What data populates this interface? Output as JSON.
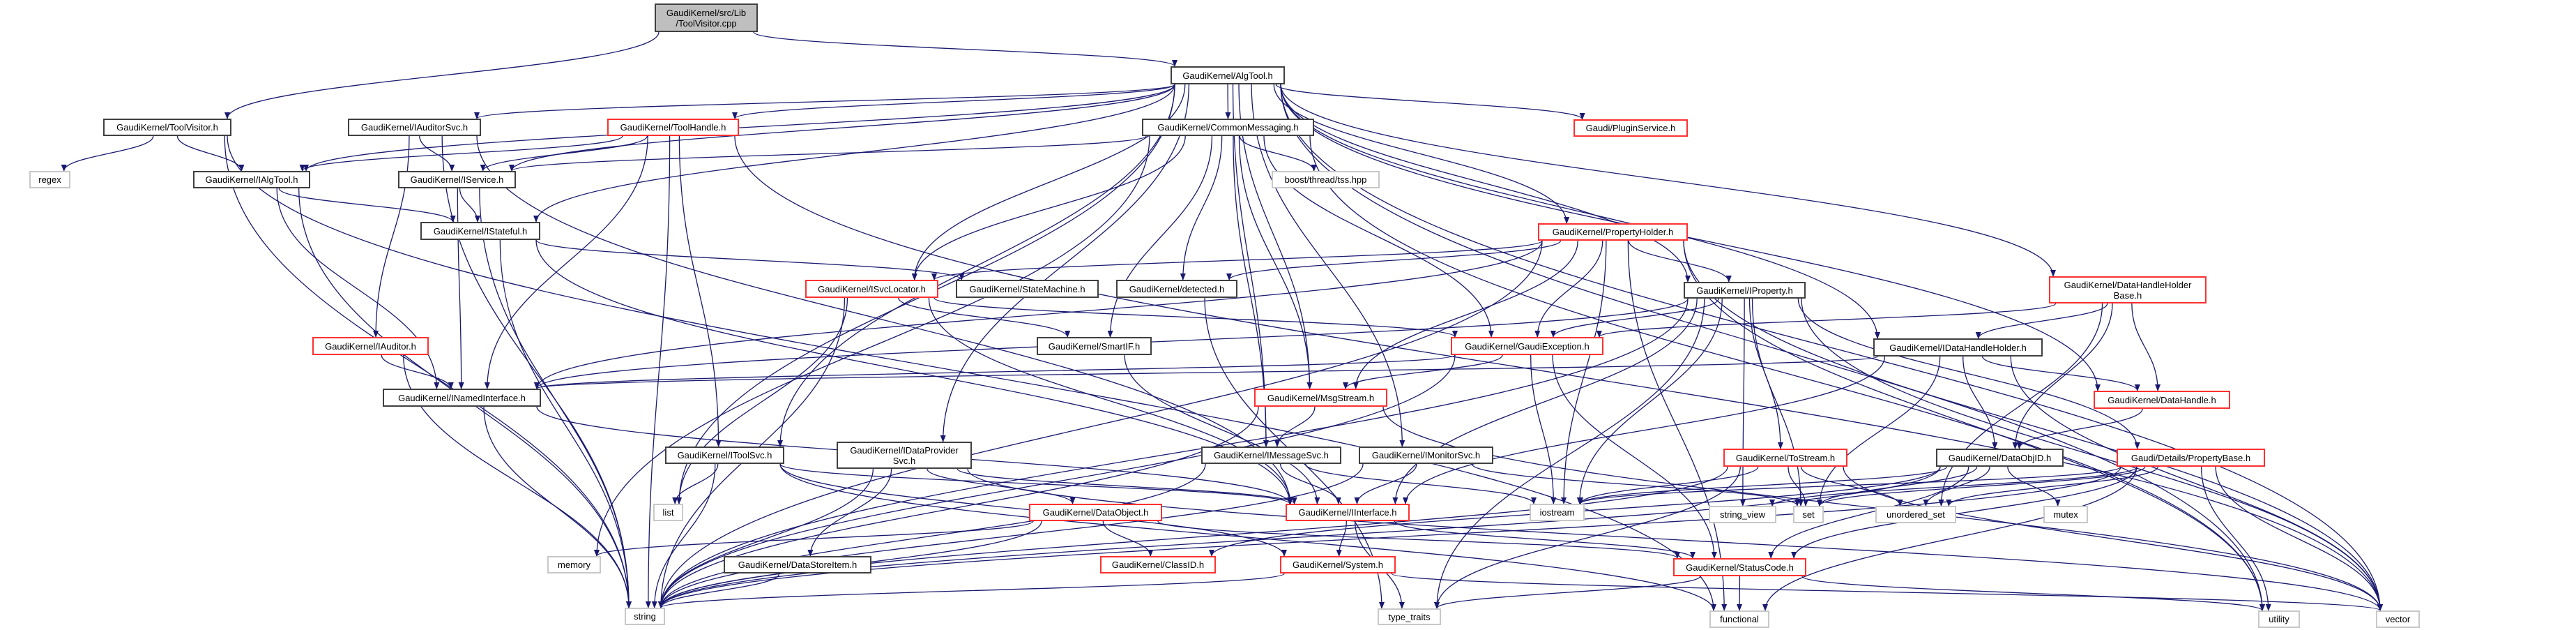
{
  "colors": {
    "edge": "#191970",
    "link_border": "#404040",
    "truncated_border": "#ff3030",
    "system_border": "#c8c8c8",
    "root_fill": "#bfbfbf"
  },
  "nodes": [
    {
      "id": "root",
      "lines": [
        "GaudiKernel/src/Lib",
        "/ToolVisitor.cpp"
      ],
      "kind": "root"
    },
    {
      "id": "AlgTool",
      "lines": [
        "GaudiKernel/AlgTool.h"
      ],
      "kind": "normal"
    },
    {
      "id": "ToolVisitor",
      "lines": [
        "GaudiKernel/ToolVisitor.h"
      ],
      "kind": "normal"
    },
    {
      "id": "IAuditorSvc",
      "lines": [
        "GaudiKernel/IAuditorSvc.h"
      ],
      "kind": "normal"
    },
    {
      "id": "ToolHandle",
      "lines": [
        "GaudiKernel/ToolHandle.h"
      ],
      "kind": "red"
    },
    {
      "id": "CommonMessaging",
      "lines": [
        "GaudiKernel/CommonMessaging.h"
      ],
      "kind": "normal"
    },
    {
      "id": "PluginService",
      "lines": [
        "Gaudi/PluginService.h"
      ],
      "kind": "red"
    },
    {
      "id": "regex",
      "lines": [
        "regex"
      ],
      "kind": "sys"
    },
    {
      "id": "IAlgTool",
      "lines": [
        "GaudiKernel/IAlgTool.h"
      ],
      "kind": "normal"
    },
    {
      "id": "IService",
      "lines": [
        "GaudiKernel/IService.h"
      ],
      "kind": "normal"
    },
    {
      "id": "boost",
      "lines": [
        "boost/thread/tss.hpp"
      ],
      "kind": "sys"
    },
    {
      "id": "IStateful",
      "lines": [
        "GaudiKernel/IStateful.h"
      ],
      "kind": "normal"
    },
    {
      "id": "PropertyHolder",
      "lines": [
        "GaudiKernel/PropertyHolder.h"
      ],
      "kind": "red"
    },
    {
      "id": "DataHandleHolderBase",
      "lines": [
        "GaudiKernel/DataHandleHolder",
        "Base.h"
      ],
      "kind": "red"
    },
    {
      "id": "ISvcLocator",
      "lines": [
        "GaudiKernel/ISvcLocator.h"
      ],
      "kind": "red"
    },
    {
      "id": "StateMachine",
      "lines": [
        "GaudiKernel/StateMachine.h"
      ],
      "kind": "normal"
    },
    {
      "id": "detected",
      "lines": [
        "GaudiKernel/detected.h"
      ],
      "kind": "normal"
    },
    {
      "id": "IProperty",
      "lines": [
        "GaudiKernel/IProperty.h"
      ],
      "kind": "normal"
    },
    {
      "id": "IAuditor",
      "lines": [
        "GaudiKernel/IAuditor.h"
      ],
      "kind": "red"
    },
    {
      "id": "SmartIF",
      "lines": [
        "GaudiKernel/SmartIF.h"
      ],
      "kind": "normal"
    },
    {
      "id": "GaudiException",
      "lines": [
        "GaudiKernel/GaudiException.h"
      ],
      "kind": "red"
    },
    {
      "id": "IDataHandleHolder",
      "lines": [
        "GaudiKernel/IDataHandleHolder.h"
      ],
      "kind": "normal"
    },
    {
      "id": "INamedInterface",
      "lines": [
        "GaudiKernel/INamedInterface.h"
      ],
      "kind": "normal"
    },
    {
      "id": "MsgStream",
      "lines": [
        "GaudiKernel/MsgStream.h"
      ],
      "kind": "red"
    },
    {
      "id": "DataHandle",
      "lines": [
        "GaudiKernel/DataHandle.h"
      ],
      "kind": "red"
    },
    {
      "id": "IToolSvc",
      "lines": [
        "GaudiKernel/IToolSvc.h"
      ],
      "kind": "normal"
    },
    {
      "id": "IDataProviderSvc",
      "lines": [
        "GaudiKernel/IDataProvider",
        "Svc.h"
      ],
      "kind": "normal"
    },
    {
      "id": "IMessageSvc",
      "lines": [
        "GaudiKernel/IMessageSvc.h"
      ],
      "kind": "normal"
    },
    {
      "id": "IMonitorSvc",
      "lines": [
        "GaudiKernel/IMonitorSvc.h"
      ],
      "kind": "normal"
    },
    {
      "id": "ToStream",
      "lines": [
        "GaudiKernel/ToStream.h"
      ],
      "kind": "red"
    },
    {
      "id": "DataObjID",
      "lines": [
        "GaudiKernel/DataObjID.h"
      ],
      "kind": "normal"
    },
    {
      "id": "PropertyBase",
      "lines": [
        "Gaudi/Details/PropertyBase.h"
      ],
      "kind": "red"
    },
    {
      "id": "list",
      "lines": [
        "list"
      ],
      "kind": "sys"
    },
    {
      "id": "iostream",
      "lines": [
        "iostream"
      ],
      "kind": "sys"
    },
    {
      "id": "string_view",
      "lines": [
        "string_view"
      ],
      "kind": "sys"
    },
    {
      "id": "set",
      "lines": [
        "set"
      ],
      "kind": "sys"
    },
    {
      "id": "unordered_set",
      "lines": [
        "unordered_set"
      ],
      "kind": "sys"
    },
    {
      "id": "mutex",
      "lines": [
        "mutex"
      ],
      "kind": "sys"
    },
    {
      "id": "DataObject",
      "lines": [
        "GaudiKernel/DataObject.h"
      ],
      "kind": "red"
    },
    {
      "id": "IInterface",
      "lines": [
        "GaudiKernel/IInterface.h"
      ],
      "kind": "red"
    },
    {
      "id": "memory",
      "lines": [
        "memory"
      ],
      "kind": "sys"
    },
    {
      "id": "ClassID",
      "lines": [
        "GaudiKernel/ClassID.h"
      ],
      "kind": "red"
    },
    {
      "id": "System",
      "lines": [
        "GaudiKernel/System.h"
      ],
      "kind": "red"
    },
    {
      "id": "StatusCode",
      "lines": [
        "GaudiKernel/StatusCode.h"
      ],
      "kind": "red"
    },
    {
      "id": "DataStoreItem",
      "lines": [
        "GaudiKernel/DataStoreItem.h"
      ],
      "kind": "normal"
    },
    {
      "id": "string",
      "lines": [
        "string"
      ],
      "kind": "sys"
    },
    {
      "id": "type_traits",
      "lines": [
        "type_traits"
      ],
      "kind": "sys"
    },
    {
      "id": "functional",
      "lines": [
        "functional"
      ],
      "kind": "sys"
    },
    {
      "id": "utility",
      "lines": [
        "utility"
      ],
      "kind": "sys"
    },
    {
      "id": "vector",
      "lines": [
        "vector"
      ],
      "kind": "sys"
    }
  ],
  "edges": [
    [
      "root",
      "ToolVisitor"
    ],
    [
      "root",
      "AlgTool"
    ],
    [
      "ToolVisitor",
      "regex"
    ],
    [
      "ToolVisitor",
      "IAlgTool"
    ],
    [
      "ToolVisitor",
      "string"
    ],
    [
      "ToolVisitor",
      "functional"
    ],
    [
      "AlgTool",
      "IAlgTool"
    ],
    [
      "AlgTool",
      "IAuditorSvc"
    ],
    [
      "AlgTool",
      "IService"
    ],
    [
      "AlgTool",
      "IStateful"
    ],
    [
      "AlgTool",
      "ISvcLocator"
    ],
    [
      "AlgTool",
      "IToolSvc"
    ],
    [
      "AlgTool",
      "IDataProviderSvc"
    ],
    [
      "AlgTool",
      "IMessageSvc"
    ],
    [
      "AlgTool",
      "IMonitorSvc"
    ],
    [
      "AlgTool",
      "CommonMessaging"
    ],
    [
      "AlgTool",
      "ToolHandle"
    ],
    [
      "AlgTool",
      "PluginService"
    ],
    [
      "AlgTool",
      "PropertyHolder"
    ],
    [
      "AlgTool",
      "IProperty"
    ],
    [
      "AlgTool",
      "IDataHandleHolder"
    ],
    [
      "AlgTool",
      "DataHandleHolderBase"
    ],
    [
      "AlgTool",
      "DataHandle"
    ],
    [
      "AlgTool",
      "MsgStream"
    ],
    [
      "AlgTool",
      "list"
    ],
    [
      "AlgTool",
      "vector"
    ],
    [
      "AlgTool",
      "utility"
    ],
    [
      "IAuditorSvc",
      "IService"
    ],
    [
      "IAuditorSvc",
      "IAuditor"
    ],
    [
      "IAuditorSvc",
      "string"
    ],
    [
      "IAuditorSvc",
      "IInterface"
    ],
    [
      "ToolHandle",
      "IAlgTool"
    ],
    [
      "ToolHandle",
      "IToolSvc"
    ],
    [
      "ToolHandle",
      "INamedInterface"
    ],
    [
      "ToolHandle",
      "string"
    ],
    [
      "ToolHandle",
      "vector"
    ],
    [
      "ToolHandle",
      "IService"
    ],
    [
      "IAlgTool",
      "IStateful"
    ],
    [
      "IAlgTool",
      "INamedInterface"
    ],
    [
      "IAlgTool",
      "string"
    ],
    [
      "IService",
      "IStateful"
    ],
    [
      "IService",
      "INamedInterface"
    ],
    [
      "IService",
      "string"
    ],
    [
      "IStateful",
      "StateMachine"
    ],
    [
      "IStateful",
      "IInterface"
    ],
    [
      "IStateful",
      "string"
    ],
    [
      "IAuditor",
      "INamedInterface"
    ],
    [
      "IAuditor",
      "string"
    ],
    [
      "INamedInterface",
      "IInterface"
    ],
    [
      "INamedInterface",
      "string"
    ],
    [
      "CommonMessaging",
      "IService"
    ],
    [
      "CommonMessaging",
      "ISvcLocator"
    ],
    [
      "CommonMessaging",
      "SmartIF"
    ],
    [
      "CommonMessaging",
      "detected"
    ],
    [
      "CommonMessaging",
      "IMessageSvc"
    ],
    [
      "CommonMessaging",
      "MsgStream"
    ],
    [
      "CommonMessaging",
      "GaudiException"
    ],
    [
      "CommonMessaging",
      "boost"
    ],
    [
      "CommonMessaging",
      "memory"
    ],
    [
      "CommonMessaging",
      "utility"
    ],
    [
      "ISvcLocator",
      "SmartIF"
    ],
    [
      "ISvcLocator",
      "GaudiException"
    ],
    [
      "ISvcLocator",
      "IInterface"
    ],
    [
      "ISvcLocator",
      "list"
    ],
    [
      "ISvcLocator",
      "string"
    ],
    [
      "SmartIF",
      "IInterface"
    ],
    [
      "detected",
      "type_traits"
    ],
    [
      "PropertyHolder",
      "IProperty"
    ],
    [
      "PropertyHolder",
      "ISvcLocator"
    ],
    [
      "PropertyHolder",
      "detected"
    ],
    [
      "PropertyHolder",
      "GaudiException"
    ],
    [
      "PropertyHolder",
      "MsgStream"
    ],
    [
      "PropertyHolder",
      "INamedInterface"
    ],
    [
      "PropertyHolder",
      "iostream"
    ],
    [
      "PropertyHolder",
      "string"
    ],
    [
      "PropertyHolder",
      "vector"
    ],
    [
      "PropertyHolder",
      "utility"
    ],
    [
      "PropertyHolder",
      "functional"
    ],
    [
      "IProperty",
      "GaudiException"
    ],
    [
      "IProperty",
      "ToStream"
    ],
    [
      "IProperty",
      "PropertyBase"
    ],
    [
      "IProperty",
      "IInterface"
    ],
    [
      "IProperty",
      "INamedInterface"
    ],
    [
      "IProperty",
      "iostream"
    ],
    [
      "IProperty",
      "string"
    ],
    [
      "IProperty",
      "string_view"
    ],
    [
      "IProperty",
      "set"
    ],
    [
      "IProperty",
      "vector"
    ],
    [
      "IProperty",
      "type_traits"
    ],
    [
      "GaudiException",
      "MsgStream"
    ],
    [
      "GaudiException",
      "StatusCode"
    ],
    [
      "GaudiException",
      "INamedInterface"
    ],
    [
      "GaudiException",
      "iostream"
    ],
    [
      "GaudiException",
      "string"
    ],
    [
      "MsgStream",
      "IMessageSvc"
    ],
    [
      "MsgStream",
      "string"
    ],
    [
      "MsgStream",
      "vector"
    ],
    [
      "IMessageSvc",
      "IInterface"
    ],
    [
      "IMessageSvc",
      "iostream"
    ],
    [
      "IMessageSvc",
      "string"
    ],
    [
      "IMonitorSvc",
      "IInterface"
    ],
    [
      "IMonitorSvc",
      "set"
    ],
    [
      "IMonitorSvc",
      "string"
    ],
    [
      "IToolSvc",
      "IInterface"
    ],
    [
      "IToolSvc",
      "System"
    ],
    [
      "IToolSvc",
      "list"
    ],
    [
      "IToolSvc",
      "string"
    ],
    [
      "IToolSvc",
      "functional"
    ],
    [
      "IDataProviderSvc",
      "DataObject"
    ],
    [
      "IDataProviderSvc",
      "DataStoreItem"
    ],
    [
      "IDataProviderSvc",
      "IInterface"
    ],
    [
      "IDataProviderSvc",
      "string"
    ],
    [
      "IDataProviderSvc",
      "vector"
    ],
    [
      "DataObject",
      "ClassID"
    ],
    [
      "DataObject",
      "StatusCode"
    ],
    [
      "DataObject",
      "memory"
    ],
    [
      "DataObject",
      "string"
    ],
    [
      "DataStoreItem",
      "string"
    ],
    [
      "IInterface",
      "System"
    ],
    [
      "IInterface",
      "StatusCode"
    ],
    [
      "IInterface",
      "type_traits"
    ],
    [
      "System",
      "string"
    ],
    [
      "System",
      "vector"
    ],
    [
      "StatusCode",
      "functional"
    ],
    [
      "StatusCode",
      "utility"
    ],
    [
      "StatusCode",
      "type_traits"
    ],
    [
      "ToStream",
      "iostream"
    ],
    [
      "ToStream",
      "set"
    ],
    [
      "ToStream",
      "unordered_set"
    ],
    [
      "ToStream",
      "string"
    ],
    [
      "ToStream",
      "type_traits"
    ],
    [
      "ToStream",
      "vector"
    ],
    [
      "IDataHandleHolder",
      "DataObjID"
    ],
    [
      "IDataHandleHolder",
      "DataHandle"
    ],
    [
      "IDataHandleHolder",
      "INamedInterface"
    ],
    [
      "IDataHandleHolder",
      "IInterface"
    ],
    [
      "IDataHandleHolder",
      "set"
    ],
    [
      "IDataHandleHolder",
      "vector"
    ],
    [
      "DataHandleHolderBase",
      "IDataHandleHolder"
    ],
    [
      "DataHandleHolderBase",
      "DataHandle"
    ],
    [
      "DataHandleHolderBase",
      "DataObjID"
    ],
    [
      "DataHandleHolderBase",
      "GaudiException"
    ],
    [
      "DataHandleHolderBase",
      "unordered_set"
    ],
    [
      "DataHandle",
      "DataObjID"
    ],
    [
      "DataObjID",
      "ClassID"
    ],
    [
      "DataObjID",
      "StatusCode"
    ],
    [
      "DataObjID",
      "mutex"
    ],
    [
      "DataObjID",
      "iostream"
    ],
    [
      "DataObjID",
      "set"
    ],
    [
      "DataObjID",
      "string"
    ],
    [
      "DataObjID",
      "unordered_set"
    ],
    [
      "PropertyBase",
      "StatusCode"
    ],
    [
      "PropertyBase",
      "string"
    ],
    [
      "PropertyBase",
      "string_view"
    ],
    [
      "PropertyBase",
      "utility"
    ],
    [
      "PropertyBase",
      "iostream"
    ],
    [
      "PropertyBase",
      "set"
    ],
    [
      "PropertyBase",
      "unordered_set"
    ],
    [
      "PropertyBase",
      "functional"
    ],
    [
      "PropertyBase",
      "vector"
    ]
  ]
}
